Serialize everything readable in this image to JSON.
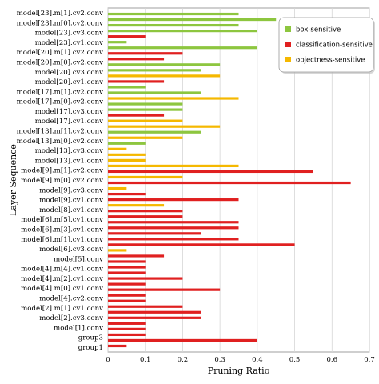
{
  "chart_data": {
    "type": "bar",
    "orientation": "horizontal",
    "xlabel": "Pruning Ratio",
    "ylabel": "Layer Sequence",
    "xlim": [
      0,
      0.7
    ],
    "xticks": [
      "0",
      "0.1",
      "0.2",
      "0.3",
      "0.4",
      "0.5",
      "0.6",
      "0.7"
    ],
    "grid": "vertical",
    "legend_position": "top-right",
    "colors": {
      "box": "#8dc63f",
      "cls": "#e02020",
      "obj": "#f5b800"
    },
    "series_names": [
      "box-sensitive",
      "classification-sensitive",
      "objectness-sensitive"
    ],
    "category_labels": [
      "model[23].m[1].cv2.conv",
      "model[23].m[0].cv2.conv",
      "model[23].cv3.conv",
      "model[23].cv1.conv",
      "model[20].m[1].cv2.conv",
      "model[20].m[0].cv2.conv",
      "model[20].cv3.conv",
      "model[20].cv1.conv",
      "model[17].m[1].cv2.conv",
      "model[17].m[0].cv2.conv",
      "model[17].cv3.conv",
      "model[17].cv1.conv",
      "model[13].m[1].cv2.conv",
      "model[13].m[0].cv2.conv",
      "model[13].cv3.conv",
      "model[13].cv1.conv",
      "model[9].m[1].cv2.conv",
      "model[9].m[0].cv2.conv",
      "model[9].cv3.conv",
      "model[9].cv1.conv",
      "model[8].cv1.conv",
      "model[6].m[5].cv1.conv",
      "model[6].m[3].cv1.conv",
      "model[6].m[1].cv1.conv",
      "model[6].cv3.conv",
      "model[5].conv",
      "model[4].m[4].cv1.conv",
      "model[4].m[2].cv1.conv",
      "model[4].m[0].cv1.conv",
      "model[4].cv2.conv",
      "model[2].m[1].cv1.conv",
      "model[2].cv3.conv",
      "model[1].conv",
      "group3",
      "group1"
    ],
    "bars": [
      {
        "s": "box",
        "v": 0.35
      },
      {
        "s": "box",
        "v": 0.45
      },
      {
        "s": "box",
        "v": 0.35
      },
      {
        "s": "box",
        "v": 0.4
      },
      {
        "s": "cls",
        "v": 0.1
      },
      {
        "s": "box",
        "v": 0.05
      },
      {
        "s": "box",
        "v": 0.4
      },
      {
        "s": "cls",
        "v": 0.2
      },
      {
        "s": "cls",
        "v": 0.15
      },
      {
        "s": "box",
        "v": 0.3
      },
      {
        "s": "box",
        "v": 0.25
      },
      {
        "s": "obj",
        "v": 0.3
      },
      {
        "s": "cls",
        "v": 0.15
      },
      {
        "s": "box",
        "v": 0.1
      },
      {
        "s": "box",
        "v": 0.25
      },
      {
        "s": "obj",
        "v": 0.35
      },
      {
        "s": "box",
        "v": 0.2
      },
      {
        "s": "box",
        "v": 0.2
      },
      {
        "s": "cls",
        "v": 0.15
      },
      {
        "s": "obj",
        "v": 0.2
      },
      {
        "s": "obj",
        "v": 0.3
      },
      {
        "s": "box",
        "v": 0.25
      },
      {
        "s": "obj",
        "v": 0.2
      },
      {
        "s": "box",
        "v": 0.1
      },
      {
        "s": "obj",
        "v": 0.05
      },
      {
        "s": "obj",
        "v": 0.1
      },
      {
        "s": "obj",
        "v": 0.1
      },
      {
        "s": "obj",
        "v": 0.35
      },
      {
        "s": "cls",
        "v": 0.55
      },
      {
        "s": "obj",
        "v": 0.2
      },
      {
        "s": "cls",
        "v": 0.65
      },
      {
        "s": "obj",
        "v": 0.05
      },
      {
        "s": "cls",
        "v": 0.1
      },
      {
        "s": "cls",
        "v": 0.35
      },
      {
        "s": "obj",
        "v": 0.15
      },
      {
        "s": "cls",
        "v": 0.2
      },
      {
        "s": "cls",
        "v": 0.2
      },
      {
        "s": "cls",
        "v": 0.35
      },
      {
        "s": "cls",
        "v": 0.35
      },
      {
        "s": "cls",
        "v": 0.25
      },
      {
        "s": "cls",
        "v": 0.35
      },
      {
        "s": "cls",
        "v": 0.5
      },
      {
        "s": "obj",
        "v": 0.05
      },
      {
        "s": "cls",
        "v": 0.15
      },
      {
        "s": "cls",
        "v": 0.1
      },
      {
        "s": "cls",
        "v": 0.1
      },
      {
        "s": "cls",
        "v": 0.1
      },
      {
        "s": "cls",
        "v": 0.2
      },
      {
        "s": "cls",
        "v": 0.1
      },
      {
        "s": "cls",
        "v": 0.3
      },
      {
        "s": "cls",
        "v": 0.1
      },
      {
        "s": "cls",
        "v": 0.1
      },
      {
        "s": "cls",
        "v": 0.2
      },
      {
        "s": "cls",
        "v": 0.25
      },
      {
        "s": "cls",
        "v": 0.25
      },
      {
        "s": "cls",
        "v": 0.1
      },
      {
        "s": "cls",
        "v": 0.1
      },
      {
        "s": "cls",
        "v": 0.1
      },
      {
        "s": "cls",
        "v": 0.4
      },
      {
        "s": "cls",
        "v": 0.05
      }
    ]
  }
}
